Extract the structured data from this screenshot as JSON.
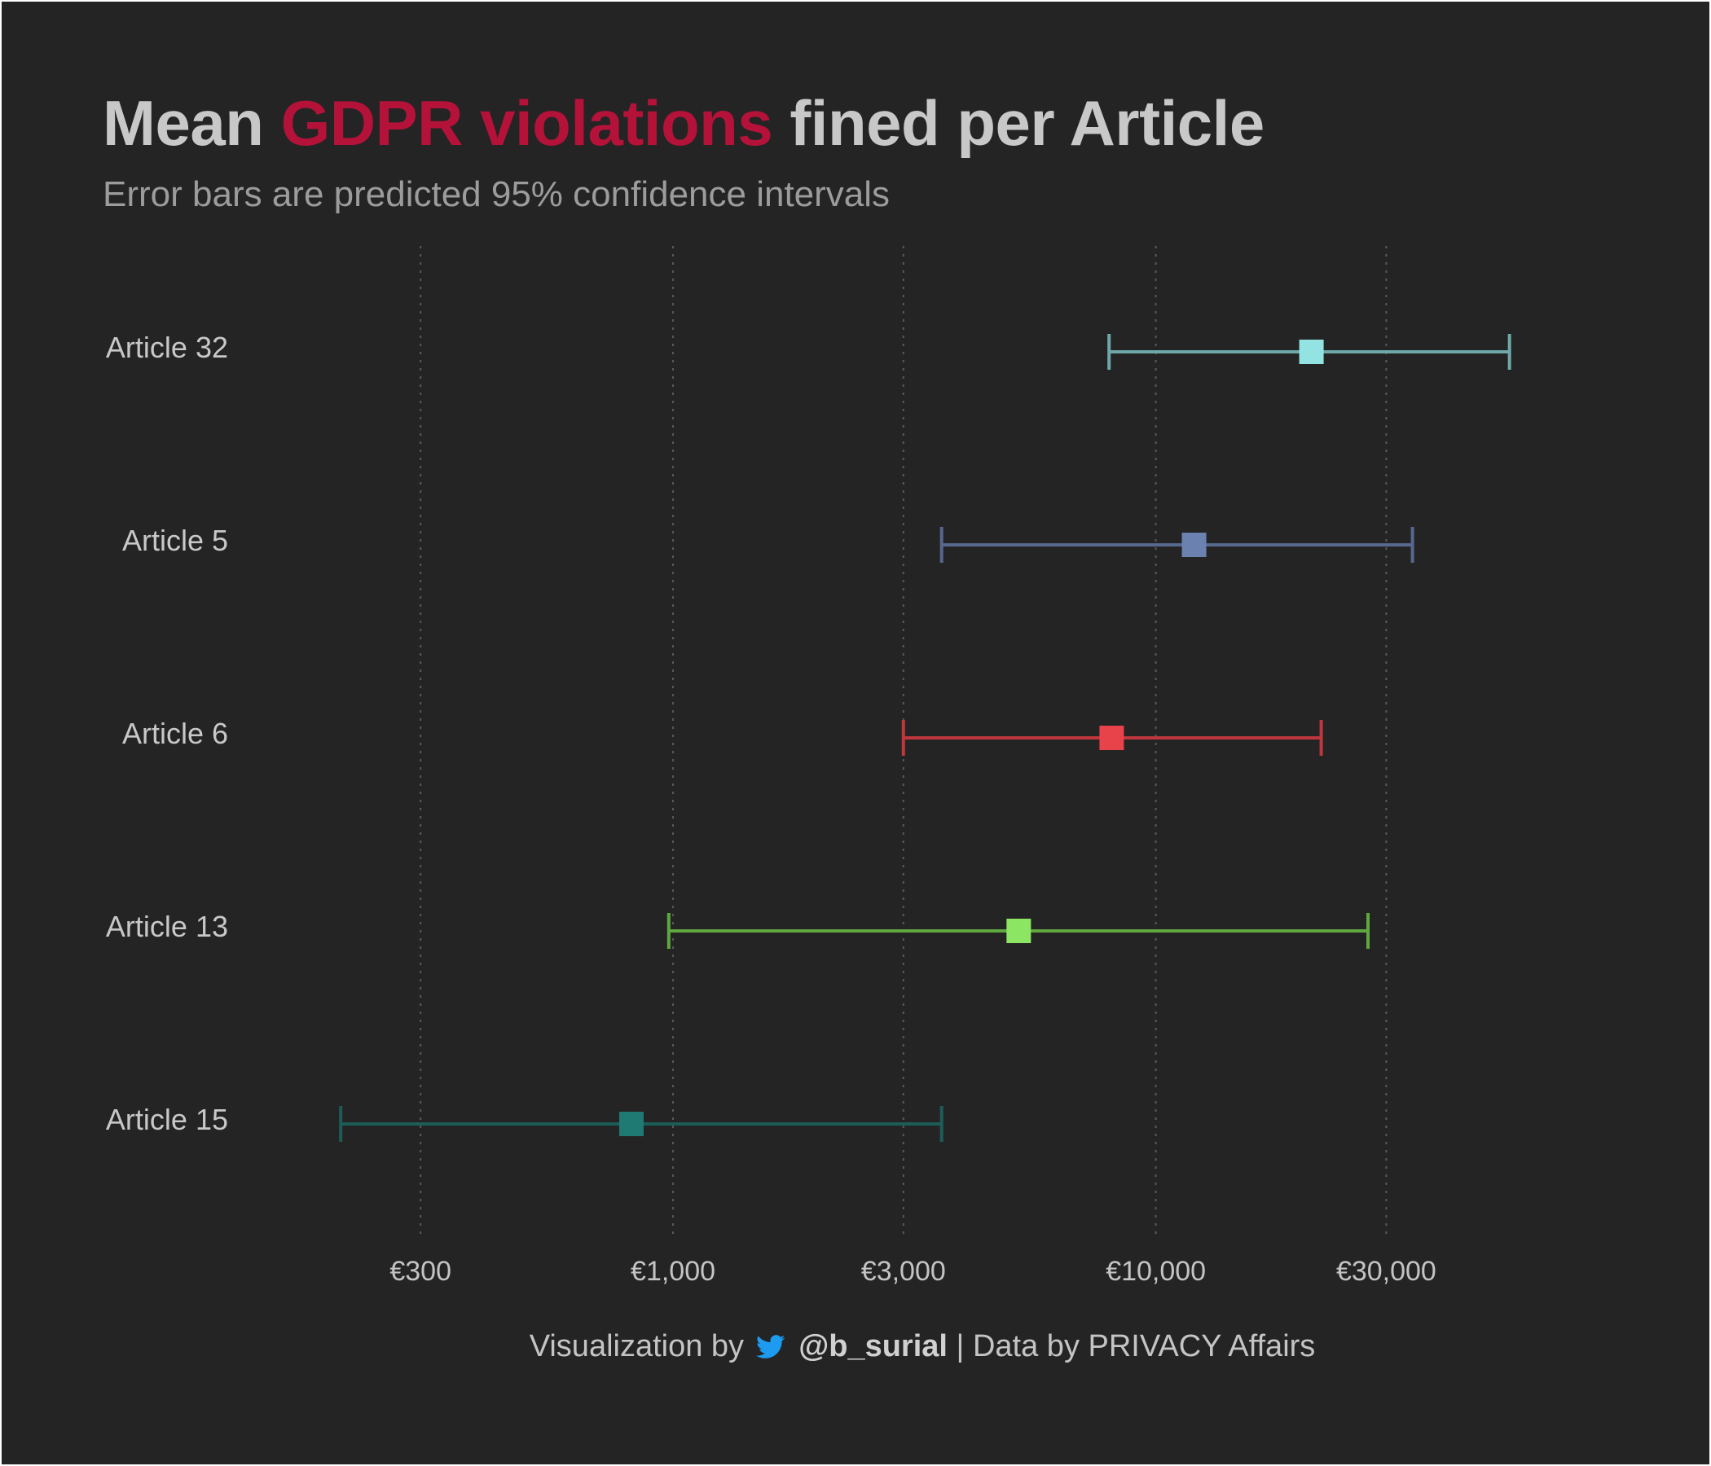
{
  "title": {
    "prefix": "Mean ",
    "highlight": "GDPR violations",
    "suffix": " fined per Article",
    "highlight_color": "#b5123a"
  },
  "subtitle": "Error bars are predicted 95% confidence intervals",
  "caption": {
    "prefix": "Visualization by",
    "icon": "twitter-bird-icon",
    "handle": "@b_surial",
    "separator": "|",
    "source": "Data by PRIVACY Affairs"
  },
  "colors": {
    "background": "#242424",
    "text": "#c8c8c8",
    "muted_text": "#9c9c9c",
    "grid": "#5a5a5a",
    "twitter_blue": "#1d9bf0"
  },
  "chart_data": {
    "type": "errorbar",
    "x_scale": "log",
    "xlim": [
      170,
      68000
    ],
    "x_ticks": [
      300,
      1000,
      3000,
      10000,
      30000
    ],
    "x_tick_labels": [
      "€300",
      "€1,000",
      "€3,000",
      "€10,000",
      "€30,000"
    ],
    "grid": "vertical dotted",
    "xlabel": "",
    "ylabel": "",
    "rows": [
      {
        "label": "Article 32",
        "mean": 21000,
        "lower": 8000,
        "upper": 54000,
        "color": "#94e3e3",
        "bar_color": "#6fa8a8"
      },
      {
        "label": "Article 5",
        "mean": 12000,
        "lower": 3600,
        "upper": 34000,
        "color": "#6b82b0",
        "bar_color": "#56688e"
      },
      {
        "label": "Article 6",
        "mean": 8100,
        "lower": 3000,
        "upper": 22000,
        "color": "#e8424a",
        "bar_color": "#c0363d"
      },
      {
        "label": "Article 13",
        "mean": 5200,
        "lower": 980,
        "upper": 27500,
        "color": "#8ce663",
        "bar_color": "#5fa83e"
      },
      {
        "label": "Article 15",
        "mean": 820,
        "lower": 205,
        "upper": 3600,
        "color": "#1f7a73",
        "bar_color": "#1c5d58"
      }
    ]
  }
}
